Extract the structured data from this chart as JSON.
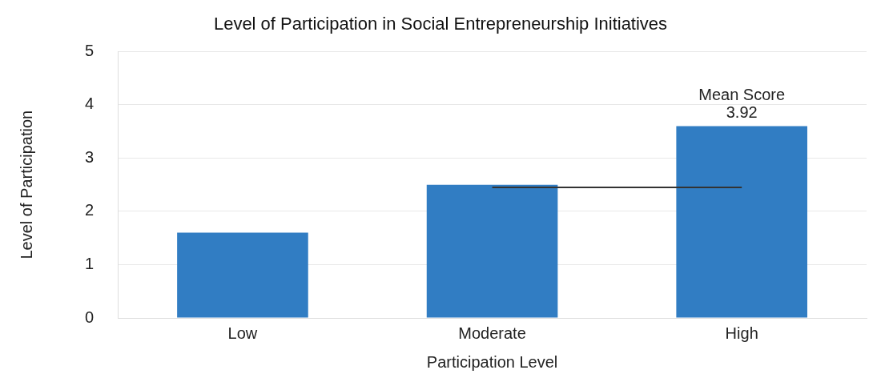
{
  "chart_data": {
    "type": "bar",
    "title": "Level of Participation in Social Entrepreneurship Initiatives",
    "xlabel": "Participation Level",
    "ylabel": "Level of Participation",
    "categories": [
      "Low",
      "Moderate",
      "High"
    ],
    "series": [
      {
        "color": "#317dc3",
        "values": [
          1.6,
          2.5,
          3.6
        ]
      },
      {
        "type": "line",
        "color": "#333333",
        "values": [
          null,
          2.45,
          2.45
        ]
      }
    ],
    "ylim": [
      0,
      5
    ],
    "yticks": [
      0,
      1,
      2,
      3,
      4,
      5
    ],
    "grid": "y",
    "legend": false,
    "marker": "none",
    "annotations": [
      {
        "text": "Mean Score\n3.92",
        "x": "High",
        "y": 3.6
      }
    ]
  }
}
